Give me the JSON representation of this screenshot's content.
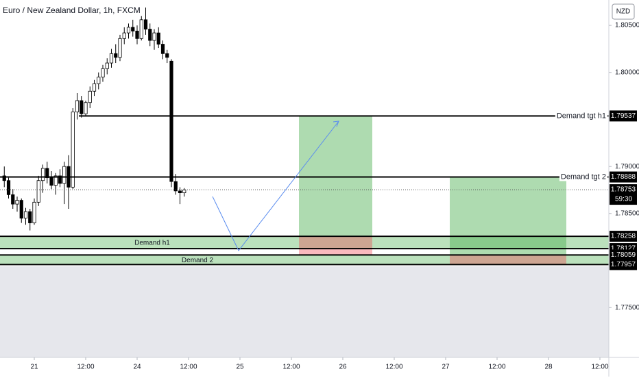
{
  "chart_data": {
    "type": "candlestick",
    "title": "Euro / New Zealand Dollar, 1h, FXCM",
    "currency": "NZD",
    "xlim": [
      0,
      142.08
    ],
    "ylim": [
      1.7697,
      1.8077
    ],
    "xticks": [
      {
        "value": 8,
        "label": "21"
      },
      {
        "value": 20,
        "label": "12:00"
      },
      {
        "value": 32,
        "label": "24"
      },
      {
        "value": 44,
        "label": "12:00"
      },
      {
        "value": 56,
        "label": "25"
      },
      {
        "value": 68,
        "label": "12:00"
      },
      {
        "value": 80,
        "label": "26"
      },
      {
        "value": 92,
        "label": "12:00"
      },
      {
        "value": 104,
        "label": "27"
      },
      {
        "value": 116,
        "label": "12:00"
      },
      {
        "value": 128,
        "label": "28"
      },
      {
        "value": 140,
        "label": "12:00"
      }
    ],
    "yticks": [
      {
        "value": 1.805,
        "label": "1.80500"
      },
      {
        "value": 1.8,
        "label": "1.80000"
      },
      {
        "value": 1.79,
        "label": "1.79000"
      },
      {
        "value": 1.785,
        "label": "1.78500"
      },
      {
        "value": 1.775,
        "label": "1.77500"
      }
    ],
    "x": [
      1,
      2,
      3,
      4,
      5,
      6,
      7,
      8,
      9,
      10,
      11,
      12,
      13,
      14,
      15,
      16,
      17,
      18,
      19,
      20,
      21,
      22,
      23,
      24,
      25,
      26,
      27,
      28,
      29,
      30,
      31,
      32,
      33,
      34,
      35,
      36,
      37,
      38,
      39,
      40,
      41,
      42,
      43
    ],
    "open": [
      1.789,
      1.7885,
      1.787,
      1.786,
      1.7864,
      1.7845,
      1.7852,
      1.784,
      1.7862,
      1.7885,
      1.7898,
      1.7888,
      1.788,
      1.789,
      1.7882,
      1.79,
      1.7878,
      1.7958,
      1.797,
      1.7956,
      1.7968,
      1.798,
      1.7988,
      1.7995,
      1.8004,
      1.801,
      1.802,
      1.8016,
      1.8036,
      1.8042,
      1.8048,
      1.8044,
      1.8036,
      1.8056,
      1.8046,
      1.8034,
      1.8042,
      1.803,
      1.802,
      1.8012,
      1.7884,
      1.7874,
      1.7872
    ],
    "high": [
      1.79,
      1.7888,
      1.7876,
      1.7868,
      1.7866,
      1.7856,
      1.7855,
      1.7866,
      1.789,
      1.7902,
      1.7905,
      1.7895,
      1.7893,
      1.7897,
      1.7905,
      1.7912,
      1.7962,
      1.7978,
      1.7975,
      1.797,
      1.7985,
      1.7992,
      1.8,
      1.8008,
      1.8015,
      1.8025,
      1.803,
      1.804,
      1.8048,
      1.8052,
      1.8056,
      1.805,
      1.806,
      1.8069,
      1.8052,
      1.8046,
      1.8048,
      1.8034,
      1.8024,
      1.8014,
      1.7892,
      1.7878,
      1.7877
    ],
    "low": [
      1.7878,
      1.7866,
      1.7855,
      1.7852,
      1.784,
      1.7838,
      1.7832,
      1.7838,
      1.7858,
      1.7872,
      1.7882,
      1.7876,
      1.787,
      1.7878,
      1.786,
      1.7855,
      1.7876,
      1.795,
      1.7952,
      1.7954,
      1.7962,
      1.7975,
      1.7982,
      1.799,
      1.7998,
      1.8005,
      1.801,
      1.8012,
      1.803,
      1.8036,
      1.8038,
      1.803,
      1.8034,
      1.804,
      1.8028,
      1.8024,
      1.8026,
      1.8014,
      1.801,
      1.7878,
      1.787,
      1.786,
      1.7868
    ],
    "close": [
      1.7885,
      1.787,
      1.786,
      1.7864,
      1.7845,
      1.7852,
      1.784,
      1.7862,
      1.7885,
      1.7898,
      1.7888,
      1.788,
      1.789,
      1.7882,
      1.79,
      1.7878,
      1.7958,
      1.797,
      1.7956,
      1.7968,
      1.798,
      1.7988,
      1.7995,
      1.8004,
      1.801,
      1.802,
      1.8016,
      1.8036,
      1.8042,
      1.8048,
      1.8044,
      1.8036,
      1.8056,
      1.8046,
      1.8034,
      1.8042,
      1.803,
      1.802,
      1.8016,
      1.7884,
      1.7874,
      1.7872,
      1.7875
    ],
    "levels": [
      {
        "name": "Demand tgt h1",
        "value": 1.79537,
        "label": "1.79537",
        "x_start": 18.4
      },
      {
        "name": "Demand tgt 2",
        "value": 1.78888,
        "label": "1.78888",
        "x_start": 0
      },
      {
        "value": 1.78258,
        "label": "1.78258",
        "x_start": 0
      },
      {
        "value": 1.78127,
        "label": "1.78127",
        "x_start": 0
      },
      {
        "value": 1.78059,
        "label": "1.78059",
        "x_start": 0
      },
      {
        "value": 1.77957,
        "label": "1.77957",
        "x_start": 0
      }
    ],
    "current_price": {
      "value": 1.78753,
      "label": "1.78753",
      "countdown": "59:30"
    },
    "zones": [
      {
        "name": "Demand h1",
        "top": 1.78258,
        "bottom": 1.78127
      },
      {
        "name": "Demand 2",
        "top": 1.78059,
        "bottom": 1.77957
      }
    ],
    "positions": [
      {
        "x_start": 69.76,
        "x_end": 86.88,
        "target": 1.79537,
        "entry": 1.78258,
        "stop": 1.78059
      },
      {
        "x_start": 104.96,
        "x_end": 132.16,
        "target": 1.78888,
        "entry": 1.78059,
        "stop": 1.77957
      }
    ]
  }
}
